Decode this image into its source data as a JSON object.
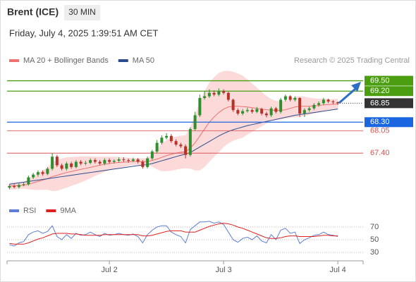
{
  "header": {
    "symbol": "Brent (ICE)",
    "interval": "30 MIN",
    "timestamp": "Friday, July 4, 2025 1:39:51 AM CET",
    "source": "Research © 2025 Trading Central"
  },
  "chart_data": [
    {
      "type": "candlestick",
      "categories": [
        null,
        null,
        null,
        null,
        null,
        null,
        null,
        null,
        null,
        null,
        null,
        null,
        null,
        null,
        null,
        null,
        null,
        null,
        null,
        null,
        null,
        "Jul 2",
        null,
        null,
        null,
        null,
        null,
        null,
        null,
        null,
        null,
        null,
        null,
        null,
        null,
        null,
        null,
        null,
        null,
        null,
        null,
        null,
        null,
        null,
        null,
        "Jul 3",
        null,
        null,
        null,
        null,
        null,
        null,
        null,
        null,
        null,
        null,
        null,
        null,
        null,
        null,
        null,
        null,
        null,
        null,
        null,
        null,
        null,
        null,
        null,
        "Jul 4"
      ],
      "open": [
        66.4,
        66.45,
        66.42,
        66.48,
        66.5,
        66.7,
        66.78,
        66.85,
        66.8,
        66.95,
        67.3,
        67.05,
        66.95,
        67.1,
        67.0,
        67.15,
        67.1,
        67.12,
        67.2,
        67.15,
        67.1,
        67.2,
        67.15,
        67.18,
        67.22,
        67.2,
        67.18,
        67.22,
        67.15,
        67.0,
        67.25,
        67.45,
        67.7,
        67.85,
        67.9,
        67.75,
        67.65,
        67.6,
        67.35,
        68.1,
        68.5,
        69.0,
        69.05,
        69.15,
        69.1,
        69.2,
        69.15,
        68.95,
        68.65,
        68.55,
        68.62,
        68.65,
        68.6,
        68.68,
        68.55,
        68.5,
        68.7,
        68.6,
        68.95,
        69.05,
        68.95,
        69.0,
        68.55,
        68.65,
        68.7,
        68.8,
        68.85,
        68.95,
        68.9,
        68.88
      ],
      "high": [
        66.5,
        66.5,
        66.52,
        66.55,
        66.75,
        66.83,
        66.9,
        66.9,
        67.0,
        67.4,
        67.35,
        67.1,
        67.15,
        67.15,
        67.2,
        67.2,
        67.18,
        67.25,
        67.25,
        67.2,
        67.25,
        67.25,
        67.22,
        67.28,
        67.28,
        67.24,
        67.27,
        67.26,
        67.2,
        67.3,
        67.5,
        67.78,
        67.92,
        67.98,
        67.95,
        67.8,
        67.7,
        67.65,
        68.15,
        68.6,
        69.1,
        69.2,
        69.25,
        69.22,
        69.28,
        69.25,
        69.18,
        68.98,
        68.7,
        68.68,
        68.72,
        68.7,
        68.74,
        68.72,
        68.6,
        68.75,
        68.74,
        69.0,
        69.1,
        69.08,
        69.05,
        69.02,
        68.7,
        68.75,
        68.85,
        68.9,
        69.0,
        68.98,
        68.94,
        68.9
      ],
      "low": [
        66.35,
        66.38,
        66.38,
        66.44,
        66.46,
        66.65,
        66.72,
        66.75,
        66.76,
        66.9,
        67.0,
        66.9,
        66.9,
        66.95,
        66.96,
        67.05,
        67.05,
        67.08,
        67.1,
        67.05,
        67.05,
        67.1,
        67.1,
        67.14,
        67.15,
        67.12,
        67.14,
        67.1,
        66.95,
        66.96,
        67.2,
        67.4,
        67.65,
        67.8,
        67.7,
        67.6,
        67.55,
        67.25,
        67.3,
        68.05,
        68.45,
        68.95,
        69.0,
        69.05,
        69.05,
        69.1,
        68.9,
        68.6,
        68.5,
        68.5,
        68.58,
        68.55,
        68.56,
        68.5,
        68.44,
        68.45,
        68.55,
        68.55,
        68.9,
        68.9,
        68.9,
        68.45,
        68.45,
        68.6,
        68.65,
        68.75,
        68.8,
        68.85,
        68.82,
        68.8
      ],
      "close": [
        66.45,
        66.42,
        66.48,
        66.5,
        66.7,
        66.78,
        66.85,
        66.8,
        66.95,
        67.3,
        67.05,
        66.95,
        67.1,
        67.0,
        67.15,
        67.1,
        67.12,
        67.2,
        67.15,
        67.1,
        67.2,
        67.15,
        67.18,
        67.22,
        67.2,
        67.18,
        67.22,
        67.15,
        67.0,
        67.25,
        67.45,
        67.7,
        67.85,
        67.9,
        67.75,
        67.65,
        67.6,
        67.35,
        68.1,
        68.5,
        69.0,
        69.05,
        69.15,
        69.1,
        69.2,
        69.15,
        68.95,
        68.65,
        68.55,
        68.62,
        68.65,
        68.6,
        68.68,
        68.55,
        68.5,
        68.7,
        68.6,
        68.95,
        69.05,
        68.95,
        69.0,
        68.55,
        68.65,
        68.7,
        68.8,
        68.85,
        68.95,
        68.9,
        68.88,
        68.85
      ],
      "up_color": "#2f8f2f",
      "down_color": "#b83228",
      "series": [
        {
          "name": "MA 20 + Bollinger Bands",
          "color": "#f07070",
          "band_color": "#fcdada",
          "values": [
            66.45,
            66.45,
            66.46,
            66.47,
            66.5,
            66.54,
            66.58,
            66.62,
            66.66,
            66.72,
            66.76,
            66.8,
            66.84,
            66.87,
            66.9,
            66.93,
            66.96,
            66.99,
            67.02,
            67.05,
            67.08,
            67.1,
            67.12,
            67.13,
            67.14,
            67.15,
            67.16,
            67.16,
            67.15,
            67.16,
            67.19,
            67.23,
            67.28,
            67.33,
            67.37,
            67.4,
            67.43,
            67.44,
            67.55,
            67.7,
            67.9,
            68.1,
            68.3,
            68.45,
            68.58,
            68.68,
            68.74,
            68.76,
            68.76,
            68.75,
            68.74,
            68.72,
            68.7,
            68.68,
            68.66,
            68.65,
            68.64,
            68.64,
            68.66,
            68.7,
            68.74,
            68.76,
            68.76,
            68.76,
            68.77,
            68.78,
            68.8,
            68.81,
            68.82,
            68.83
          ],
          "upper": [
            66.55,
            66.55,
            66.56,
            66.57,
            66.65,
            66.74,
            66.83,
            66.9,
            66.98,
            67.14,
            67.21,
            67.25,
            67.28,
            67.29,
            67.3,
            67.31,
            67.31,
            67.31,
            67.3,
            67.3,
            67.3,
            67.3,
            67.3,
            67.29,
            67.28,
            67.27,
            67.26,
            67.26,
            67.25,
            67.26,
            67.37,
            67.53,
            67.68,
            67.78,
            67.85,
            67.88,
            67.91,
            67.92,
            68.15,
            68.5,
            68.9,
            69.2,
            69.45,
            69.6,
            69.73,
            69.78,
            69.79,
            69.76,
            69.71,
            69.65,
            69.54,
            69.42,
            69.3,
            69.18,
            69.06,
            68.97,
            68.92,
            68.9,
            68.92,
            68.98,
            69.04,
            69.06,
            69.04,
            69.01,
            68.99,
            68.98,
            68.98,
            68.97,
            68.97,
            68.98
          ],
          "lower": [
            66.35,
            66.35,
            66.36,
            66.37,
            66.35,
            66.34,
            66.33,
            66.34,
            66.34,
            66.3,
            66.31,
            66.35,
            66.4,
            66.45,
            66.5,
            66.55,
            66.61,
            66.67,
            66.74,
            66.8,
            66.86,
            66.9,
            66.94,
            66.97,
            67.0,
            67.03,
            67.06,
            67.06,
            67.05,
            67.06,
            67.01,
            66.93,
            66.88,
            66.88,
            66.89,
            66.92,
            66.95,
            66.96,
            66.95,
            66.9,
            66.9,
            67.0,
            67.15,
            67.3,
            67.43,
            67.58,
            67.69,
            67.76,
            67.81,
            67.85,
            67.94,
            68.02,
            68.1,
            68.18,
            68.26,
            68.33,
            68.36,
            68.38,
            68.4,
            68.42,
            68.44,
            68.46,
            68.48,
            68.51,
            68.55,
            68.58,
            68.62,
            68.65,
            68.67,
            68.68
          ]
        },
        {
          "name": "MA 50",
          "color": "#2b4c8c",
          "values": [
            66.5,
            66.52,
            66.54,
            66.56,
            66.58,
            66.6,
            66.62,
            66.64,
            66.66,
            66.68,
            66.7,
            66.72,
            66.74,
            66.76,
            66.78,
            66.8,
            66.82,
            66.84,
            66.86,
            66.88,
            66.9,
            66.92,
            66.94,
            66.96,
            66.98,
            67.0,
            67.02,
            67.04,
            67.05,
            67.07,
            67.1,
            67.14,
            67.18,
            67.22,
            67.26,
            67.3,
            67.34,
            67.37,
            67.42,
            67.5,
            67.58,
            67.66,
            67.74,
            67.82,
            67.9,
            67.97,
            68.03,
            68.08,
            68.12,
            68.16,
            68.2,
            68.23,
            68.26,
            68.29,
            68.32,
            68.35,
            68.38,
            68.41,
            68.44,
            68.47,
            68.5,
            68.52,
            68.54,
            68.56,
            68.58,
            68.6,
            68.62,
            68.64,
            68.66,
            68.68
          ]
        }
      ],
      "levels": [
        {
          "value": 69.5,
          "label": "69.50",
          "color": "#4a9e10",
          "boxed": true
        },
        {
          "value": 69.2,
          "label": "69.20",
          "color": "#4a9e10",
          "boxed": true
        },
        {
          "value": 68.85,
          "label": "68.85",
          "color": "#333333",
          "boxed": true,
          "dotted": true
        },
        {
          "value": 68.3,
          "label": "68.30",
          "color": "#1a66e0",
          "boxed": true
        },
        {
          "value": 68.05,
          "label": "68.05",
          "color": "#d9534f",
          "boxed": false
        },
        {
          "value": 67.4,
          "label": "67.40",
          "color": "#d9534f",
          "boxed": false
        }
      ],
      "ylim": [
        66.2,
        69.9
      ]
    },
    {
      "type": "line",
      "series": [
        {
          "name": "RSI",
          "color": "#5b7fd6",
          "values": [
            42,
            40,
            45,
            47,
            58,
            62,
            64,
            60,
            63,
            72,
            55,
            50,
            58,
            52,
            60,
            57,
            58,
            62,
            58,
            55,
            60,
            57,
            58,
            60,
            58,
            57,
            59,
            55,
            45,
            58,
            65,
            70,
            72,
            72,
            62,
            58,
            55,
            45,
            66,
            72,
            78,
            78,
            79,
            76,
            78,
            74,
            62,
            50,
            46,
            52,
            54,
            50,
            56,
            48,
            45,
            58,
            50,
            65,
            68,
            60,
            62,
            44,
            50,
            53,
            57,
            58,
            62,
            58,
            57,
            55
          ]
        },
        {
          "name": "9MA",
          "color": "#e02020",
          "values": [
            44,
            43,
            43,
            43,
            45,
            48,
            51,
            53,
            56,
            59,
            60,
            60,
            60,
            59,
            59,
            58,
            57,
            57,
            57,
            57,
            58,
            58,
            58,
            58,
            58,
            58,
            58,
            58,
            56,
            56,
            57,
            59,
            61,
            63,
            64,
            64,
            64,
            62,
            62,
            62,
            65,
            68,
            71,
            73,
            75,
            76,
            75,
            73,
            70,
            68,
            65,
            62,
            59,
            56,
            53,
            52,
            52,
            53,
            55,
            56,
            56,
            55,
            55,
            55,
            55,
            56,
            57,
            57,
            56,
            56
          ]
        }
      ],
      "ylim": [
        20,
        80
      ],
      "yticks": [
        70,
        50,
        30
      ]
    }
  ]
}
